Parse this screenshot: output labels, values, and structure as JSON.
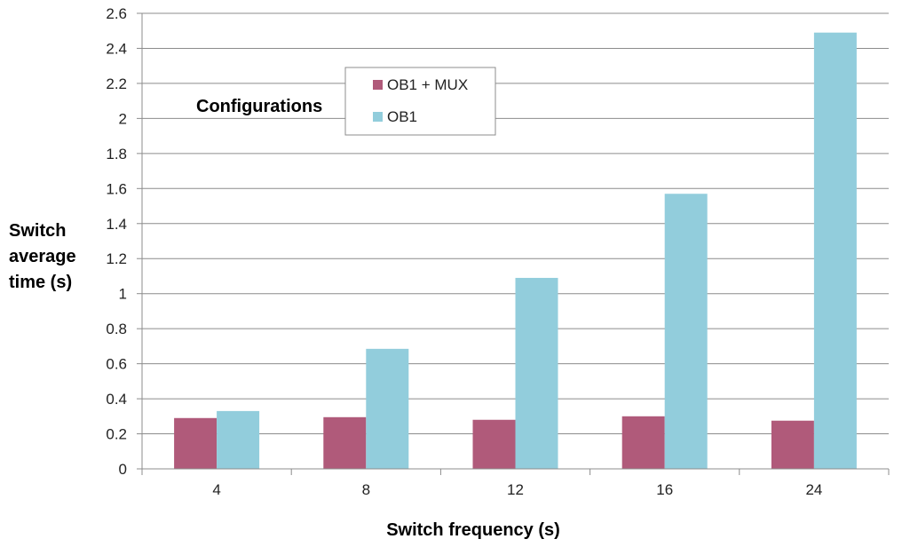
{
  "chart_data": {
    "type": "bar",
    "categories": [
      "4",
      "8",
      "12",
      "16",
      "24"
    ],
    "series": [
      {
        "name": "OB1 + MUX",
        "color": "#b05a7a",
        "values": [
          0.29,
          0.295,
          0.28,
          0.3,
          0.275
        ]
      },
      {
        "name": "OB1",
        "color": "#92cddc",
        "values": [
          0.33,
          0.685,
          1.09,
          1.57,
          2.49
        ]
      }
    ],
    "xlabel": "Switch frequency (s)",
    "ylabel_lines": [
      "Switch",
      "average",
      "time (s)"
    ],
    "ylim": [
      0,
      2.6
    ],
    "yticks": [
      "0",
      "0.2",
      "0.4",
      "0.6",
      "0.8",
      "1",
      "1.2",
      "1.4",
      "1.6",
      "1.8",
      "2",
      "2.2",
      "2.4",
      "2.6"
    ],
    "legend_title": "Configurations",
    "legend_position": "top-left inside plot",
    "grid": true,
    "gridline_color": "#8c8c8c"
  }
}
